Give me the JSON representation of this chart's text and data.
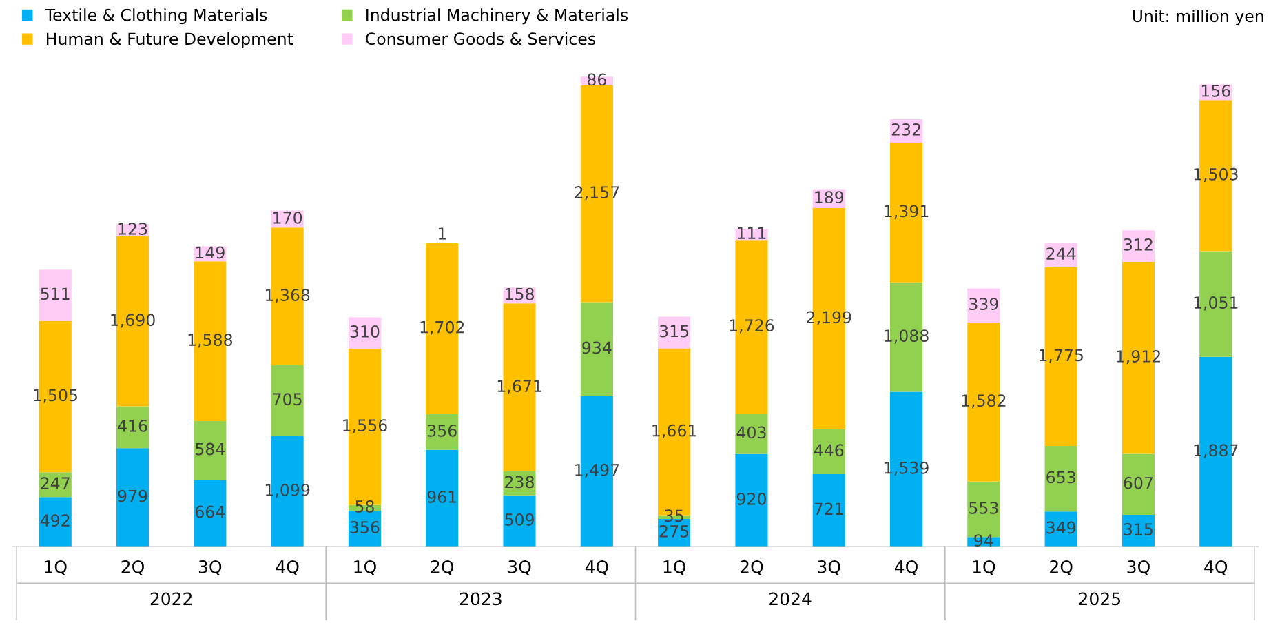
{
  "chart_data": {
    "type": "bar",
    "stacked": true,
    "legend": "top left",
    "grid": false,
    "categories": [
      "1Q",
      "2Q",
      "3Q",
      "4Q",
      "1Q",
      "2Q",
      "3Q",
      "4Q",
      "1Q",
      "2Q",
      "3Q",
      "4Q",
      "1Q",
      "2Q",
      "3Q",
      "4Q"
    ],
    "series": [
      {
        "name": "Textile & Clothing Materials",
        "color": "#00b0f0",
        "values": [
          492,
          979,
          664,
          1099,
          356,
          961,
          509,
          1497,
          275,
          920,
          721,
          1539,
          94,
          349,
          315,
          1887
        ],
        "value_labels": [
          "492",
          "979",
          "664",
          "1,099",
          "356",
          "961",
          "509",
          "1,497",
          "275",
          "920",
          "721",
          "1,539",
          "94",
          "349",
          "315",
          "1,887"
        ]
      },
      {
        "name": "Industrial Machinery & Materials",
        "color": "#92d050",
        "values": [
          247,
          416,
          584,
          705,
          58,
          356,
          238,
          934,
          35,
          403,
          446,
          1088,
          553,
          653,
          607,
          1051
        ],
        "value_labels": [
          "247",
          "416",
          "584",
          "705",
          "58",
          "356",
          "238",
          "934",
          "35",
          "403",
          "446",
          "1,088",
          "553",
          "653",
          "607",
          "1,051"
        ]
      },
      {
        "name": "Human & Future Development",
        "color": "#ffc000",
        "values": [
          1505,
          1690,
          1588,
          1368,
          1556,
          1702,
          1671,
          2157,
          1661,
          1726,
          2199,
          1391,
          1582,
          1775,
          1912,
          1503
        ],
        "value_labels": [
          "1,505",
          "1,690",
          "1,588",
          "1,368",
          "1,556",
          "1,702",
          "1,671",
          "2,157",
          "1,661",
          "1,726",
          "2,199",
          "1,391",
          "1,582",
          "1,775",
          "1,912",
          "1,503"
        ]
      },
      {
        "name": "Consumer Goods & Services",
        "color": "#ffccf5",
        "values": [
          511,
          123,
          149,
          170,
          310,
          1,
          158,
          86,
          315,
          111,
          189,
          232,
          339,
          244,
          312,
          156
        ],
        "value_labels": [
          "511",
          "123",
          "149",
          "170",
          "310",
          "1",
          "158",
          "86",
          "315",
          "111",
          "189",
          "232",
          "339",
          "244",
          "312",
          "156"
        ]
      }
    ],
    "annotations": [
      "Unit: million yen",
      "2022",
      "2023",
      "2024",
      "2025"
    ]
  }
}
